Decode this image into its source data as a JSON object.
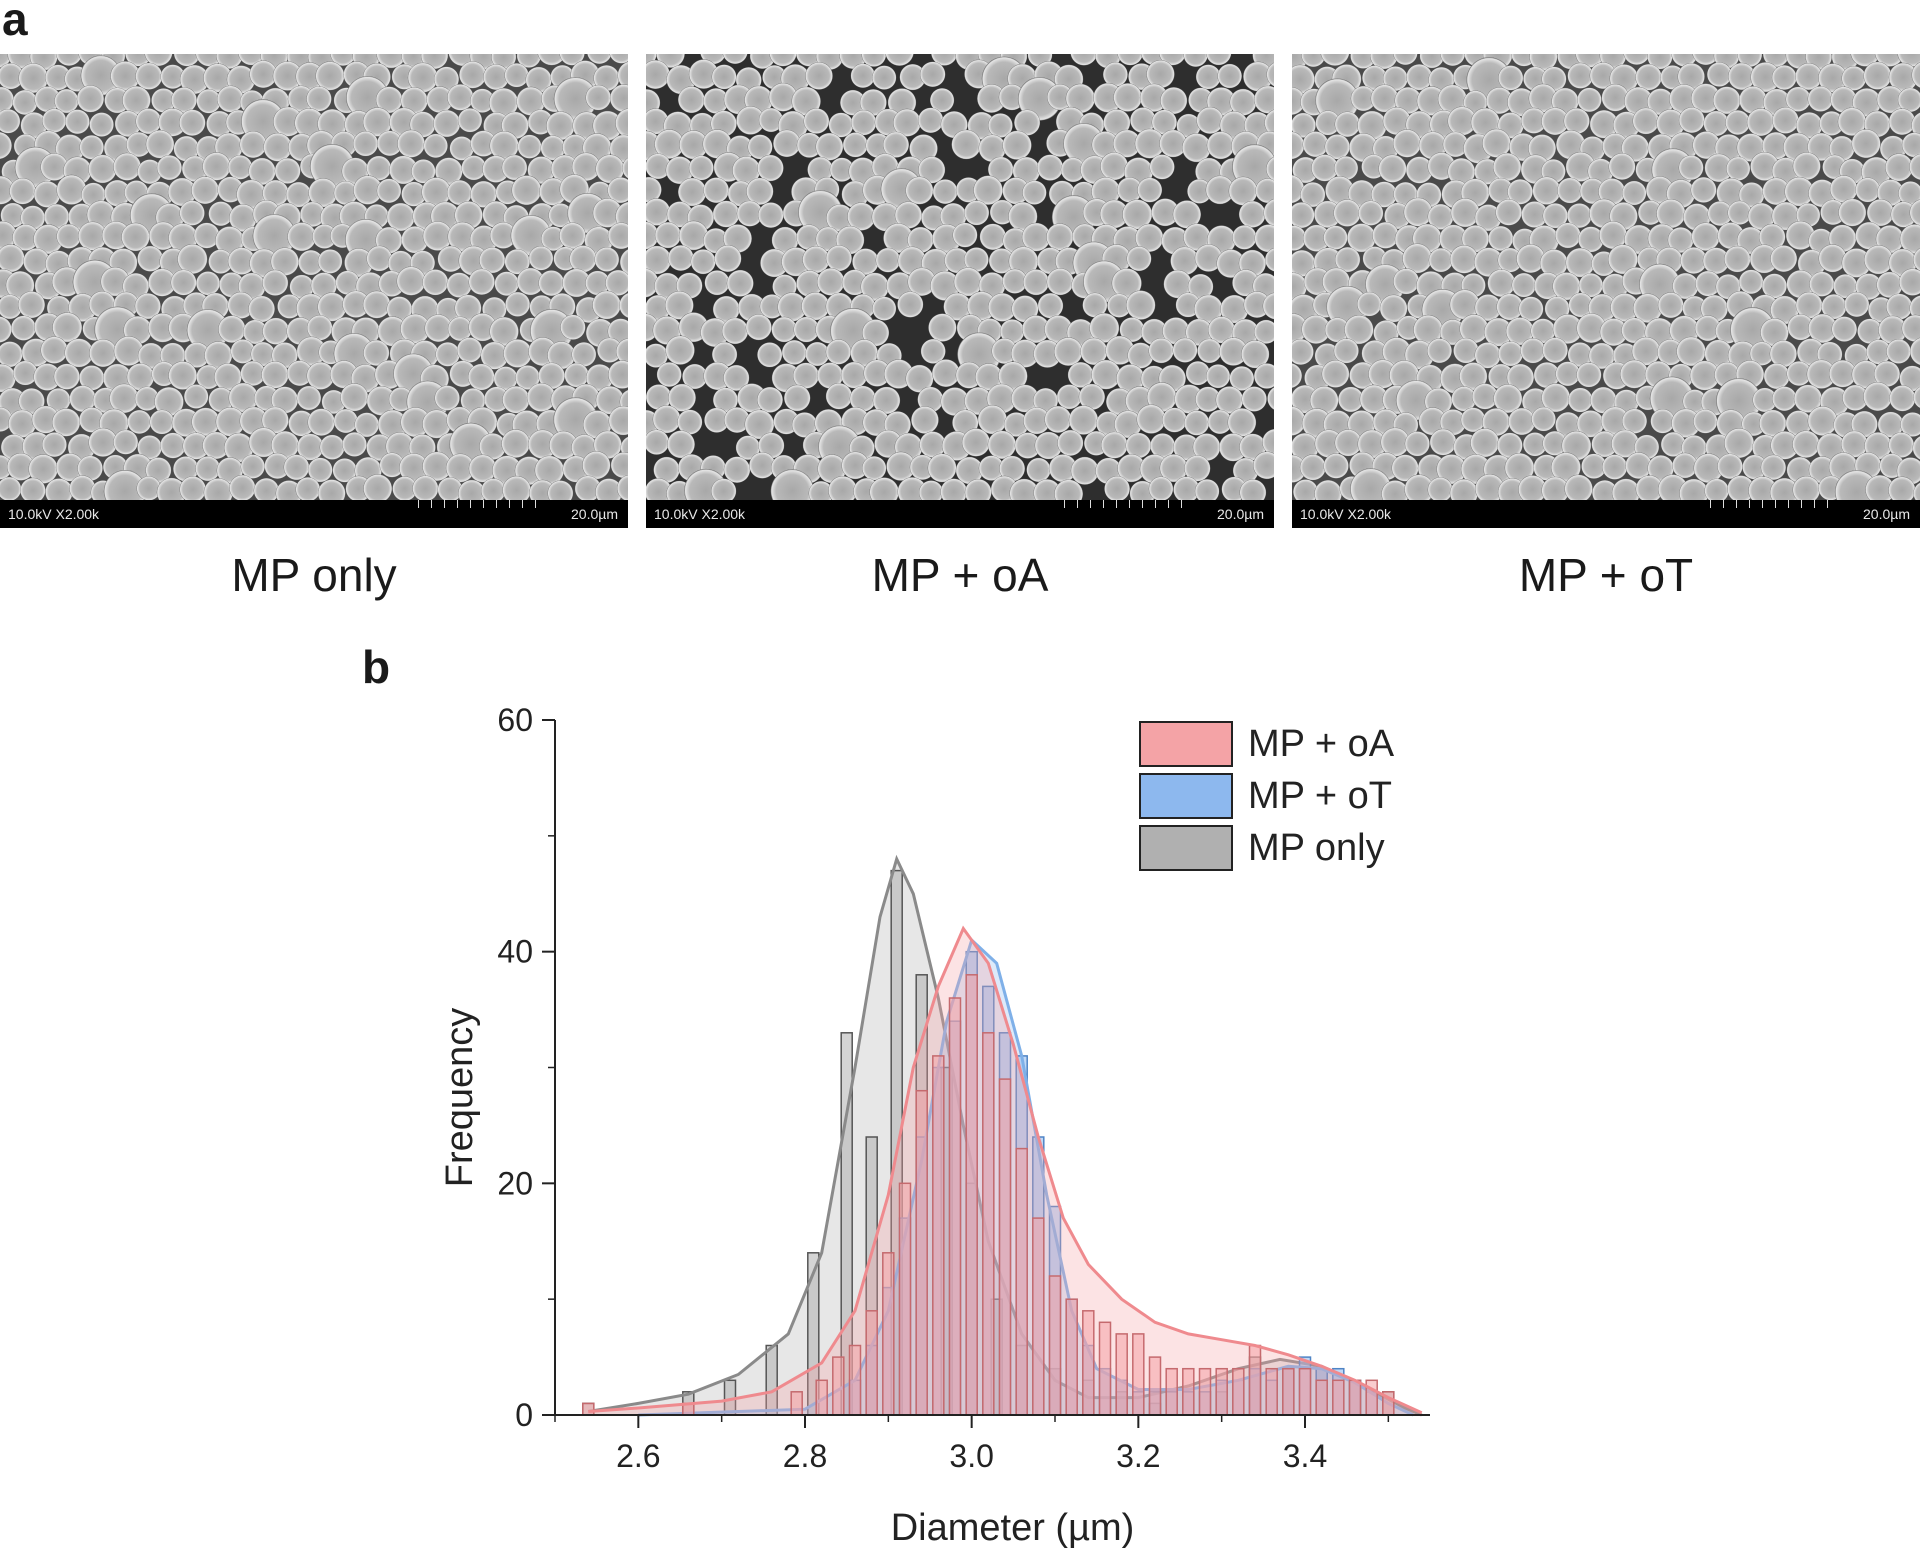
{
  "figure": {
    "panel_a": "a",
    "panel_b": "b"
  },
  "sem_images": [
    {
      "caption": "MP only",
      "left_text": "10.0kV X2.00k",
      "right_text": "20.0µm"
    },
    {
      "caption": "MP + oA",
      "left_text": "10.0kV X2.00k",
      "right_text": "20.0µm"
    },
    {
      "caption": "MP + oT",
      "left_text": "10.0kV X2.00k",
      "right_text": "20.0µm"
    }
  ],
  "chart_data": {
    "type": "bar",
    "title": "",
    "xlabel": "Diameter (µm)",
    "ylabel": "Frequency",
    "xlim": [
      2.5,
      3.55
    ],
    "ylim": [
      0,
      60
    ],
    "x_ticks": [
      2.6,
      2.8,
      3.0,
      3.2,
      3.4
    ],
    "y_ticks": [
      0,
      20,
      40,
      60
    ],
    "legend": "top-right",
    "grid": false,
    "series": [
      {
        "name": "MP + oA",
        "color": "#f4a3a6",
        "edge_color": "#c56a6e",
        "curve_color": "#ef8a8e",
        "bins": [
          [
            2.54,
            1
          ],
          [
            2.66,
            1
          ],
          [
            2.79,
            2
          ],
          [
            2.82,
            3
          ],
          [
            2.84,
            5
          ],
          [
            2.86,
            6
          ],
          [
            2.88,
            9
          ],
          [
            2.9,
            14
          ],
          [
            2.92,
            20
          ],
          [
            2.94,
            28
          ],
          [
            2.96,
            31
          ],
          [
            2.98,
            36
          ],
          [
            3.0,
            38
          ],
          [
            3.02,
            33
          ],
          [
            3.04,
            29
          ],
          [
            3.06,
            23
          ],
          [
            3.08,
            17
          ],
          [
            3.1,
            12
          ],
          [
            3.12,
            10
          ],
          [
            3.14,
            9
          ],
          [
            3.16,
            8
          ],
          [
            3.18,
            7
          ],
          [
            3.2,
            7
          ],
          [
            3.22,
            5
          ],
          [
            3.24,
            4
          ],
          [
            3.26,
            4
          ],
          [
            3.28,
            4
          ],
          [
            3.3,
            4
          ],
          [
            3.32,
            4
          ],
          [
            3.34,
            6
          ],
          [
            3.36,
            4
          ],
          [
            3.38,
            4
          ],
          [
            3.4,
            4
          ],
          [
            3.42,
            3
          ],
          [
            3.44,
            3
          ],
          [
            3.46,
            3
          ],
          [
            3.48,
            3
          ],
          [
            3.5,
            2
          ]
        ],
        "fit": [
          [
            2.54,
            0.3
          ],
          [
            2.6,
            0.6
          ],
          [
            2.7,
            1.2
          ],
          [
            2.76,
            2
          ],
          [
            2.82,
            4.5
          ],
          [
            2.86,
            9
          ],
          [
            2.9,
            19
          ],
          [
            2.93,
            30
          ],
          [
            2.96,
            37
          ],
          [
            2.99,
            42
          ],
          [
            3.02,
            39
          ],
          [
            3.05,
            32
          ],
          [
            3.08,
            24
          ],
          [
            3.11,
            17
          ],
          [
            3.14,
            13
          ],
          [
            3.18,
            10
          ],
          [
            3.22,
            8
          ],
          [
            3.26,
            7
          ],
          [
            3.3,
            6.5
          ],
          [
            3.34,
            6
          ],
          [
            3.38,
            5.2
          ],
          [
            3.42,
            4.2
          ],
          [
            3.46,
            3
          ],
          [
            3.5,
            1.5
          ],
          [
            3.54,
            0.2
          ]
        ]
      },
      {
        "name": "MP + oT",
        "color": "#8db8ee",
        "edge_color": "#4f84c5",
        "curve_color": "#7fb0e8",
        "bins": [
          [
            2.86,
            3
          ],
          [
            2.88,
            6
          ],
          [
            2.9,
            11
          ],
          [
            2.92,
            17
          ],
          [
            2.94,
            24
          ],
          [
            2.96,
            30
          ],
          [
            2.98,
            34
          ],
          [
            3.0,
            40
          ],
          [
            3.02,
            37
          ],
          [
            3.04,
            33
          ],
          [
            3.06,
            31
          ],
          [
            3.08,
            24
          ],
          [
            3.1,
            18
          ],
          [
            3.12,
            10
          ],
          [
            3.14,
            6
          ],
          [
            3.16,
            4
          ],
          [
            3.18,
            3
          ],
          [
            3.2,
            2
          ],
          [
            3.22,
            2
          ],
          [
            3.24,
            2
          ],
          [
            3.26,
            2
          ],
          [
            3.28,
            2
          ],
          [
            3.3,
            3
          ],
          [
            3.32,
            3
          ],
          [
            3.34,
            4
          ],
          [
            3.36,
            3
          ],
          [
            3.38,
            4
          ],
          [
            3.4,
            5
          ],
          [
            3.42,
            4
          ],
          [
            3.44,
            4
          ],
          [
            3.46,
            3
          ],
          [
            3.48,
            2
          ]
        ],
        "fit": [
          [
            2.6,
            0
          ],
          [
            2.8,
            0.5
          ],
          [
            2.86,
            3
          ],
          [
            2.9,
            9
          ],
          [
            2.94,
            22
          ],
          [
            2.97,
            34
          ],
          [
            3.0,
            41
          ],
          [
            3.03,
            39
          ],
          [
            3.06,
            31
          ],
          [
            3.09,
            19
          ],
          [
            3.12,
            9
          ],
          [
            3.15,
            4
          ],
          [
            3.2,
            2.2
          ],
          [
            3.26,
            2.2
          ],
          [
            3.32,
            3
          ],
          [
            3.38,
            4.2
          ],
          [
            3.42,
            4
          ],
          [
            3.46,
            2.8
          ],
          [
            3.5,
            1
          ],
          [
            3.53,
            0
          ]
        ]
      },
      {
        "name": "MP only",
        "color": "#b0b0b0",
        "edge_color": "#555555",
        "curve_color": "#8a8a8a",
        "bins": [
          [
            2.54,
            1
          ],
          [
            2.66,
            2
          ],
          [
            2.71,
            3
          ],
          [
            2.76,
            6
          ],
          [
            2.81,
            14
          ],
          [
            2.85,
            33
          ],
          [
            2.88,
            24
          ],
          [
            2.91,
            47
          ],
          [
            2.94,
            38
          ],
          [
            2.97,
            30
          ],
          [
            3.0,
            20
          ],
          [
            3.03,
            10
          ],
          [
            3.06,
            6
          ],
          [
            3.1,
            4
          ],
          [
            3.14,
            3
          ],
          [
            3.18,
            2
          ],
          [
            3.22,
            1
          ],
          [
            3.3,
            2
          ],
          [
            3.34,
            5
          ],
          [
            3.38,
            4
          ],
          [
            3.42,
            4
          ],
          [
            3.46,
            3
          ],
          [
            3.5,
            2
          ]
        ],
        "fit": [
          [
            2.54,
            0.3
          ],
          [
            2.6,
            1
          ],
          [
            2.66,
            1.8
          ],
          [
            2.72,
            3.5
          ],
          [
            2.78,
            7
          ],
          [
            2.82,
            14
          ],
          [
            2.86,
            30
          ],
          [
            2.89,
            43
          ],
          [
            2.91,
            48
          ],
          [
            2.93,
            45
          ],
          [
            2.96,
            36
          ],
          [
            2.99,
            25
          ],
          [
            3.02,
            15
          ],
          [
            3.06,
            7
          ],
          [
            3.1,
            3
          ],
          [
            3.14,
            1.5
          ],
          [
            3.2,
            1.5
          ],
          [
            3.26,
            2.5
          ],
          [
            3.32,
            4
          ],
          [
            3.37,
            4.8
          ],
          [
            3.42,
            4.2
          ],
          [
            3.47,
            2.5
          ],
          [
            3.52,
            0.6
          ],
          [
            3.54,
            0
          ]
        ]
      }
    ]
  }
}
